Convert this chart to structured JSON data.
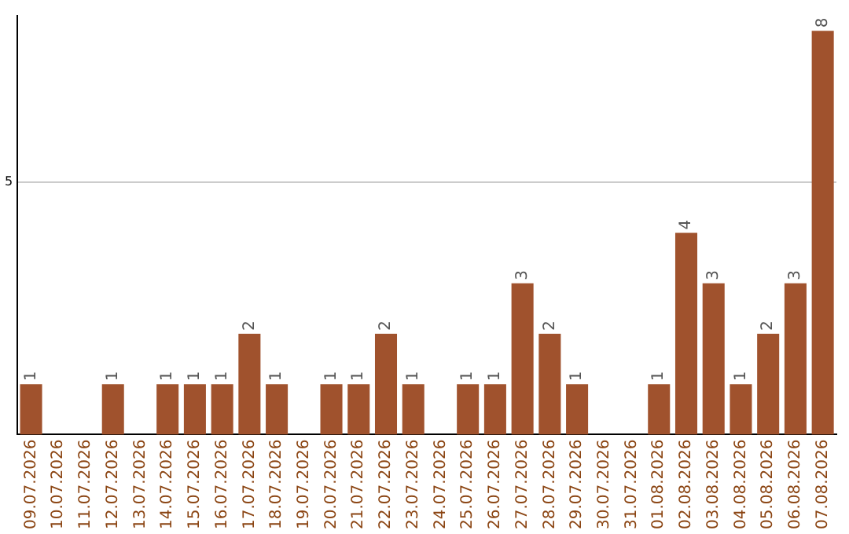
{
  "chart_data": {
    "type": "bar",
    "categories": [
      "09.07.2026",
      "10.07.2026",
      "11.07.2026",
      "12.07.2026",
      "13.07.2026",
      "14.07.2026",
      "15.07.2026",
      "16.07.2026",
      "17.07.2026",
      "18.07.2026",
      "19.07.2026",
      "20.07.2026",
      "21.07.2026",
      "22.07.2026",
      "23.07.2026",
      "24.07.2026",
      "25.07.2026",
      "26.07.2026",
      "27.07.2026",
      "28.07.2026",
      "29.07.2026",
      "30.07.2026",
      "31.07.2026",
      "01.08.2026",
      "02.08.2026",
      "03.08.2026",
      "04.08.2026",
      "05.08.2026",
      "06.08.2026",
      "07.08.2026"
    ],
    "values": [
      1,
      0,
      0,
      1,
      0,
      1,
      1,
      1,
      2,
      1,
      0,
      1,
      1,
      2,
      1,
      0,
      1,
      1,
      3,
      2,
      1,
      0,
      0,
      1,
      4,
      3,
      1,
      2,
      3,
      8
    ],
    "value_labels": [
      "1",
      null,
      null,
      "1",
      null,
      "1",
      "1",
      "1",
      "2",
      "1",
      null,
      "1",
      "1",
      "2",
      "1",
      null,
      "1",
      "1",
      "3",
      "2",
      "1",
      null,
      null,
      "1",
      "4",
      "3",
      "1",
      "2",
      "3",
      "8"
    ],
    "color": "#a0522d",
    "ylim": [
      0,
      8.3
    ],
    "yticks": [
      5
    ],
    "grid": "y",
    "legend": false
  }
}
